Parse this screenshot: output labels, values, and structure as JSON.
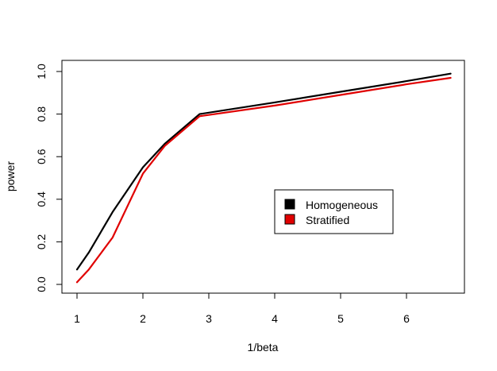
{
  "chart_data": {
    "type": "line",
    "title": "",
    "xlabel": "1/beta",
    "ylabel": "power",
    "xlim": [
      1,
      6.67
    ],
    "ylim": [
      0,
      1
    ],
    "xticks": [
      "1",
      "2",
      "3",
      "4",
      "5",
      "6"
    ],
    "yticks": [
      "0.0",
      "0.2",
      "0.4",
      "0.6",
      "0.8",
      "1.0"
    ],
    "grid": false,
    "legend_position": "center-right",
    "series": [
      {
        "name": "Homogeneous",
        "color": "#000000",
        "x": [
          1,
          1.18,
          1.54,
          2,
          2.33,
          2.86,
          4,
          5,
          6,
          6.67
        ],
        "y": [
          0.07,
          0.15,
          0.34,
          0.55,
          0.66,
          0.8,
          0.855,
          0.905,
          0.955,
          0.99
        ]
      },
      {
        "name": "Stratified",
        "color": "#e00000",
        "x": [
          1,
          1.18,
          1.54,
          2,
          2.33,
          2.86,
          4,
          5,
          6,
          6.67
        ],
        "y": [
          0.01,
          0.07,
          0.22,
          0.52,
          0.65,
          0.79,
          0.84,
          0.89,
          0.94,
          0.97
        ]
      }
    ]
  }
}
